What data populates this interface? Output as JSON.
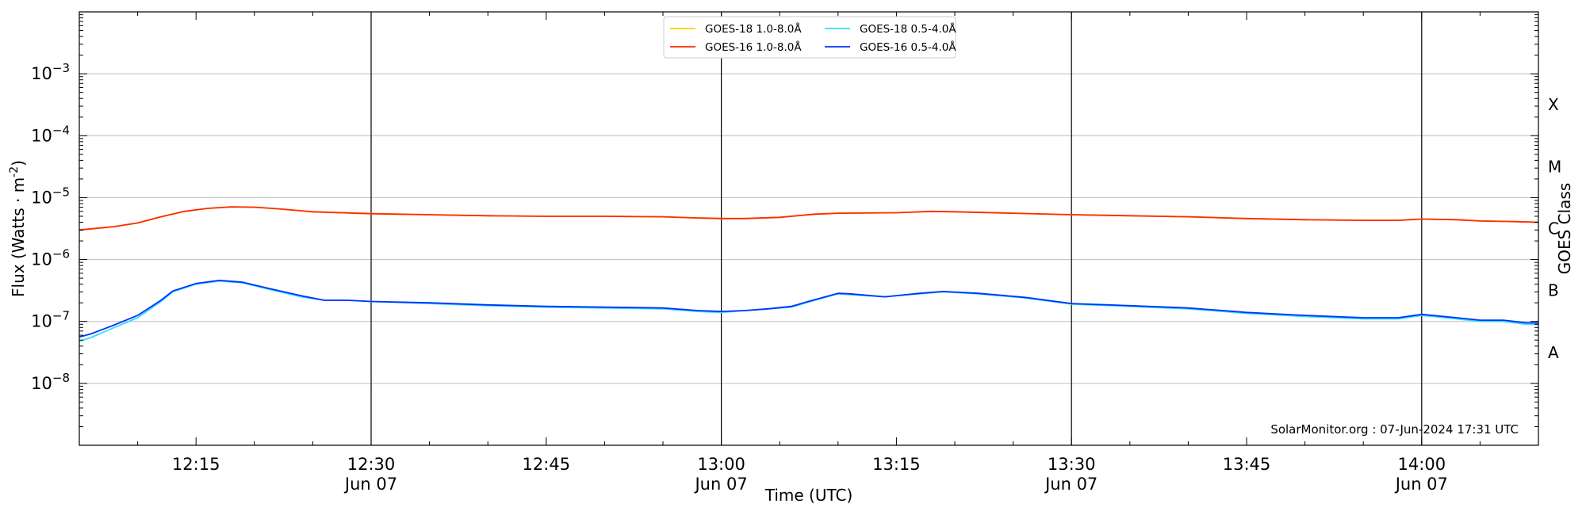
{
  "chart_data": {
    "type": "line",
    "ylabel": "Flux (Watts · m",
    "ylabel_sup": "-2",
    "ylabel_close": ")",
    "xlabel": "Time (UTC)",
    "y2label": "GOES Class",
    "yscale": "log",
    "ylim": [
      "1e-9",
      "1e-2"
    ],
    "xlim": [
      "12:05",
      "14:10"
    ],
    "yticks": [
      {
        "exp": -3,
        "base": "10",
        "sup": "−3"
      },
      {
        "exp": -4,
        "base": "10",
        "sup": "−4"
      },
      {
        "exp": -5,
        "base": "10",
        "sup": "−5"
      },
      {
        "exp": -6,
        "base": "10",
        "sup": "−6"
      },
      {
        "exp": -7,
        "base": "10",
        "sup": "−7"
      },
      {
        "exp": -8,
        "base": "10",
        "sup": "−8"
      }
    ],
    "xticks": [
      {
        "t": "12:15",
        "label": "12:15",
        "sub": ""
      },
      {
        "t": "12:30",
        "label": "12:30",
        "sub": "Jun 07"
      },
      {
        "t": "12:45",
        "label": "12:45",
        "sub": ""
      },
      {
        "t": "13:00",
        "label": "13:00",
        "sub": "Jun 07"
      },
      {
        "t": "13:15",
        "label": "13:15",
        "sub": ""
      },
      {
        "t": "13:30",
        "label": "13:30",
        "sub": "Jun 07"
      },
      {
        "t": "13:45",
        "label": "13:45",
        "sub": ""
      },
      {
        "t": "14:00",
        "label": "14:00",
        "sub": "Jun 07"
      }
    ],
    "vlines": [
      "12:30",
      "13:00",
      "13:30",
      "14:00"
    ],
    "classes": [
      {
        "label": "X",
        "exp": -3.5
      },
      {
        "label": "M",
        "exp": -4.5
      },
      {
        "label": "C",
        "exp": -5.5
      },
      {
        "label": "B",
        "exp": -6.5
      },
      {
        "label": "A",
        "exp": -7.5
      }
    ],
    "annotation": "SolarMonitor.org : 07-Jun-2024 17:31 UTC",
    "grid": true,
    "legend_position": "top-center",
    "series": [
      {
        "name": "GOES-18 1.0-8.0Å",
        "color": "#ffd000",
        "x": [
          "12:05",
          "12:08",
          "12:10",
          "12:12",
          "12:14",
          "12:16",
          "12:18",
          "12:20",
          "12:22",
          "12:25",
          "12:30",
          "12:35",
          "12:40",
          "12:45",
          "12:50",
          "12:55",
          "12:58",
          "13:00",
          "13:02",
          "13:05",
          "13:08",
          "13:10",
          "13:15",
          "13:18",
          "13:20",
          "13:25",
          "13:30",
          "13:35",
          "13:40",
          "13:45",
          "13:50",
          "13:55",
          "13:58",
          "14:00",
          "14:03",
          "14:05",
          "14:08",
          "14:10"
        ],
        "y": [
          "3.0e-6",
          "3.4e-6",
          "3.9e-6",
          "4.9e-6",
          "6.0e-6",
          "6.7e-6",
          "7.1e-6",
          "7.0e-6",
          "6.6e-6",
          "5.9e-6",
          "5.5e-6",
          "5.3e-6",
          "5.1e-6",
          "5.0e-6",
          "5.0e-6",
          "4.9e-6",
          "4.7e-6",
          "4.6e-6",
          "4.6e-6",
          "4.8e-6",
          "5.4e-6",
          "5.6e-6",
          "5.7e-6",
          "6.0e-6",
          "5.9e-6",
          "5.6e-6",
          "5.3e-6",
          "5.1e-6",
          "4.9e-6",
          "4.6e-6",
          "4.4e-6",
          "4.3e-6",
          "4.3e-6",
          "4.5e-6",
          "4.4e-6",
          "4.2e-6",
          "4.1e-6",
          "4.0e-6"
        ]
      },
      {
        "name": "GOES-16 1.0-8.0Å",
        "color": "#ff2a00",
        "x": [
          "12:05",
          "12:08",
          "12:10",
          "12:12",
          "12:14",
          "12:16",
          "12:18",
          "12:20",
          "12:22",
          "12:25",
          "12:30",
          "12:35",
          "12:40",
          "12:45",
          "12:50",
          "12:55",
          "12:58",
          "13:00",
          "13:02",
          "13:05",
          "13:08",
          "13:10",
          "13:15",
          "13:18",
          "13:20",
          "13:25",
          "13:30",
          "13:35",
          "13:40",
          "13:45",
          "13:50",
          "13:55",
          "13:58",
          "14:00",
          "14:03",
          "14:05",
          "14:08",
          "14:10"
        ],
        "y": [
          "3.0e-6",
          "3.4e-6",
          "3.9e-6",
          "4.9e-6",
          "6.0e-6",
          "6.7e-6",
          "7.1e-6",
          "7.0e-6",
          "6.6e-6",
          "5.9e-6",
          "5.5e-6",
          "5.3e-6",
          "5.1e-6",
          "5.0e-6",
          "5.0e-6",
          "4.9e-6",
          "4.7e-6",
          "4.6e-6",
          "4.6e-6",
          "4.8e-6",
          "5.4e-6",
          "5.6e-6",
          "5.7e-6",
          "6.0e-6",
          "5.9e-6",
          "5.6e-6",
          "5.3e-6",
          "5.1e-6",
          "4.9e-6",
          "4.6e-6",
          "4.4e-6",
          "4.3e-6",
          "4.3e-6",
          "4.5e-6",
          "4.4e-6",
          "4.2e-6",
          "4.1e-6",
          "4.0e-6"
        ]
      },
      {
        "name": "GOES-18 0.5-4.0Å",
        "color": "#33ddff",
        "x": [
          "12:05",
          "12:06",
          "12:08",
          "12:10",
          "12:12",
          "12:13",
          "12:15",
          "12:17",
          "12:19",
          "12:21",
          "12:24",
          "12:26",
          "12:28",
          "12:30",
          "12:35",
          "12:40",
          "12:45",
          "12:50",
          "12:55",
          "12:58",
          "13:00",
          "13:02",
          "13:04",
          "13:06",
          "13:08",
          "13:10",
          "13:11",
          "13:14",
          "13:17",
          "13:19",
          "13:22",
          "13:26",
          "13:30",
          "13:35",
          "13:40",
          "13:45",
          "13:50",
          "13:55",
          "13:58",
          "14:00",
          "14:03",
          "14:05",
          "14:07",
          "14:09",
          "14:10"
        ],
        "y": [
          "4.8e-8",
          "5.5e-8",
          "8.0e-8",
          "1.15e-7",
          "2.1e-7",
          "3.0e-7",
          "4.0e-7",
          "4.5e-7",
          "4.2e-7",
          "3.4e-7",
          "2.5e-7",
          "2.2e-7",
          "2.2e-7",
          "2.1e-7",
          "1.95e-7",
          "1.8e-7",
          "1.7e-7",
          "1.65e-7",
          "1.6e-7",
          "1.45e-7",
          "1.4e-7",
          "1.5e-7",
          "1.6e-7",
          "1.7e-7",
          "2.2e-7",
          "2.8e-7",
          "2.7e-7",
          "2.5e-7",
          "2.8e-7",
          "3.0e-7",
          "2.8e-7",
          "2.4e-7",
          "1.9e-7",
          "1.75e-7",
          "1.6e-7",
          "1.35e-7",
          "1.2e-7",
          "1.1e-7",
          "1.1e-7",
          "1.25e-7",
          "1.1e-7",
          "1.0e-7",
          "1.0e-7",
          "9.0e-8",
          "9.0e-8"
        ]
      },
      {
        "name": "GOES-16 0.5-4.0Å",
        "color": "#0033ff",
        "x": [
          "12:05",
          "12:06",
          "12:08",
          "12:10",
          "12:12",
          "12:13",
          "12:15",
          "12:17",
          "12:19",
          "12:21",
          "12:24",
          "12:26",
          "12:28",
          "12:30",
          "12:35",
          "12:40",
          "12:45",
          "12:50",
          "12:55",
          "12:58",
          "13:00",
          "13:02",
          "13:04",
          "13:06",
          "13:08",
          "13:10",
          "13:11",
          "13:14",
          "13:17",
          "13:19",
          "13:22",
          "13:26",
          "13:30",
          "13:35",
          "13:40",
          "13:45",
          "13:50",
          "13:55",
          "13:58",
          "14:00",
          "14:03",
          "14:05",
          "14:07",
          "14:09",
          "14:10"
        ],
        "y": [
          "5.6e-8",
          "6.3e-8",
          "8.8e-8",
          "1.25e-7",
          "2.2e-7",
          "3.1e-7",
          "4.1e-7",
          "4.6e-7",
          "4.3e-7",
          "3.5e-7",
          "2.6e-7",
          "2.2e-7",
          "2.2e-7",
          "2.1e-7",
          "2.0e-7",
          "1.85e-7",
          "1.75e-7",
          "1.7e-7",
          "1.65e-7",
          "1.5e-7",
          "1.45e-7",
          "1.5e-7",
          "1.6e-7",
          "1.75e-7",
          "2.25e-7",
          "2.85e-7",
          "2.8e-7",
          "2.5e-7",
          "2.85e-7",
          "3.05e-7",
          "2.85e-7",
          "2.45e-7",
          "1.95e-7",
          "1.8e-7",
          "1.65e-7",
          "1.4e-7",
          "1.25e-7",
          "1.15e-7",
          "1.15e-7",
          "1.3e-7",
          "1.15e-7",
          "1.05e-7",
          "1.05e-7",
          "9.5e-8",
          "9.5e-8"
        ]
      }
    ]
  }
}
